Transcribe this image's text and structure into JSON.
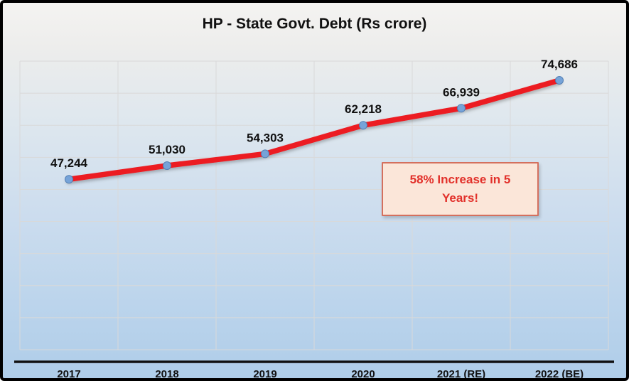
{
  "chart_data": {
    "type": "line",
    "title": "HP - State Govt. Debt (Rs crore)",
    "categories": [
      "2017",
      "2018",
      "2019",
      "2020",
      "2021 (RE)",
      "2022 (BE)"
    ],
    "series": [
      {
        "name": "State Govt. Debt (Rs crore)",
        "values": [
          47244,
          51030,
          54303,
          62218,
          66939,
          74686
        ],
        "labels": [
          "47,244",
          "51,030",
          "54,303",
          "62,218",
          "66,939",
          "74,686"
        ],
        "line_color": "#ec1c24",
        "marker_color": "#76a3d8",
        "marker_edge_color": "#537fb4"
      }
    ],
    "xlabel": "",
    "ylabel": "",
    "ylim": [
      0,
      80000
    ],
    "y_grid_divisions": 9,
    "grid": true,
    "gridline_color": "#d9d9d9",
    "axis_color": "#111111",
    "text_color": "#111111",
    "legend_position": "none",
    "annotation": {
      "text": "58% Increase in 5 Years!",
      "text_color": "#e2302a",
      "bg_color": "#fbe6d9",
      "border_color": "#d4705e"
    }
  }
}
